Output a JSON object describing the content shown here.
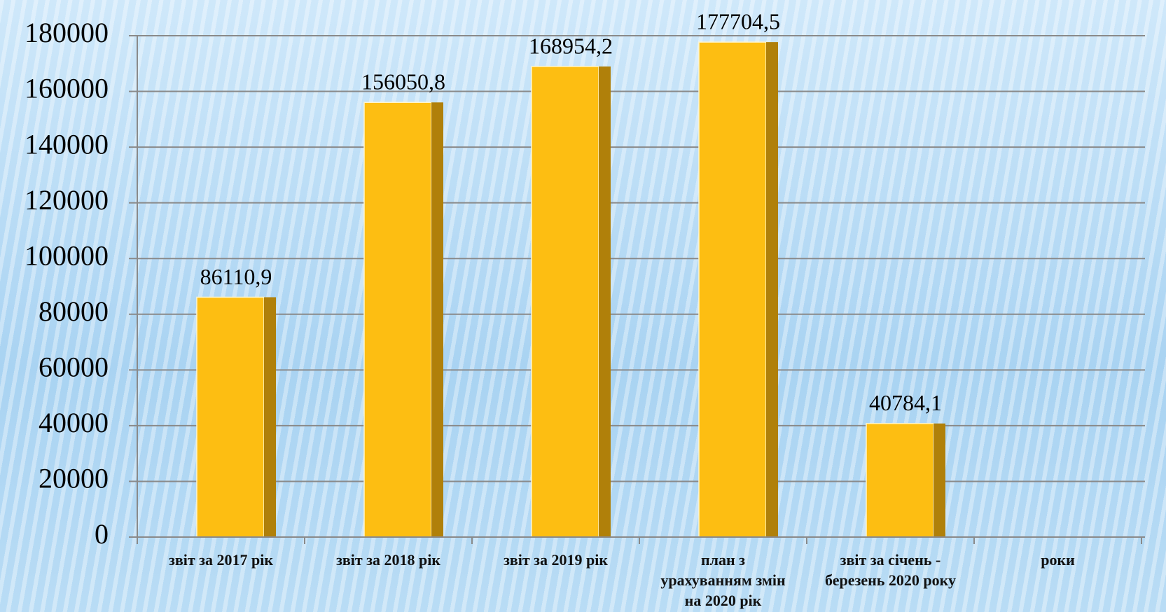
{
  "chart_data": {
    "type": "bar",
    "categories": [
      "звіт за 2017 рік",
      "звіт за 2018 рік",
      "звіт за 2019 рік",
      "план з урахуванням змін на  2020 рік",
      "звіт за січень - березень 2020 року",
      "роки"
    ],
    "values": [
      86110.9,
      156050.8,
      168954.2,
      177704.5,
      40784.1,
      null
    ],
    "value_labels": [
      "86110,9",
      "156050,8",
      "168954,2",
      "177704,5",
      "40784,1",
      null
    ],
    "color": "#fdbe12",
    "side_color": "#b0800a",
    "ylim": [
      0,
      180000
    ],
    "yticks": [
      0,
      20000,
      40000,
      60000,
      80000,
      100000,
      120000,
      140000,
      160000,
      180000
    ],
    "grid": true
  }
}
